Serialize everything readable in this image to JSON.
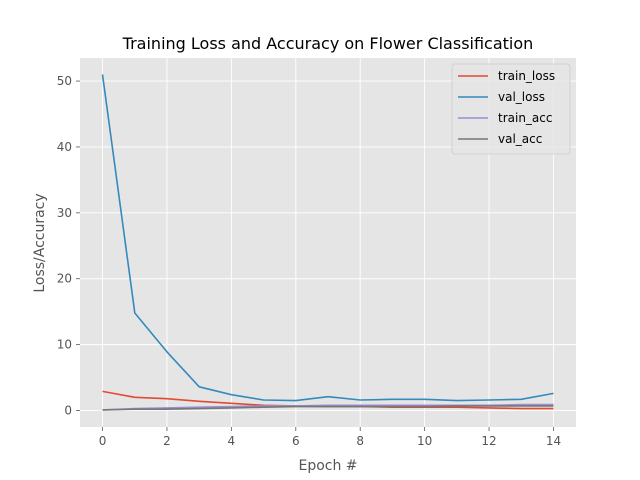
{
  "chart_data": {
    "type": "line",
    "title": "Training Loss and Accuracy on Flower Classification",
    "xlabel": "Epoch #",
    "ylabel": "Loss/Accuracy",
    "xlim": [
      -0.7,
      14.7
    ],
    "ylim": [
      -2.5,
      53.5
    ],
    "xticks": [
      0,
      2,
      4,
      6,
      8,
      10,
      12,
      14
    ],
    "yticks": [
      0,
      10,
      20,
      30,
      40,
      50
    ],
    "grid": true,
    "legend_position": "top-right",
    "x": [
      0,
      1,
      2,
      3,
      4,
      5,
      6,
      7,
      8,
      9,
      10,
      11,
      12,
      13,
      14
    ],
    "series": [
      {
        "name": "train_loss",
        "color": "#E24A33",
        "values": [
          2.9,
          2.0,
          1.8,
          1.4,
          1.1,
          0.8,
          0.7,
          0.6,
          0.6,
          0.5,
          0.5,
          0.5,
          0.4,
          0.3,
          0.3
        ]
      },
      {
        "name": "val_loss",
        "color": "#348ABD",
        "values": [
          51.0,
          14.8,
          8.9,
          3.6,
          2.4,
          1.6,
          1.5,
          2.1,
          1.6,
          1.7,
          1.7,
          1.5,
          1.6,
          1.7,
          2.6
        ]
      },
      {
        "name": "train_acc",
        "color": "#988ED5",
        "values": [
          0.1,
          0.3,
          0.4,
          0.5,
          0.6,
          0.7,
          0.7,
          0.8,
          0.8,
          0.8,
          0.8,
          0.8,
          0.8,
          0.9,
          0.9
        ]
      },
      {
        "name": "val_acc",
        "color": "#777777",
        "values": [
          0.1,
          0.2,
          0.2,
          0.3,
          0.4,
          0.5,
          0.6,
          0.6,
          0.6,
          0.6,
          0.6,
          0.7,
          0.7,
          0.7,
          0.7
        ]
      }
    ]
  }
}
